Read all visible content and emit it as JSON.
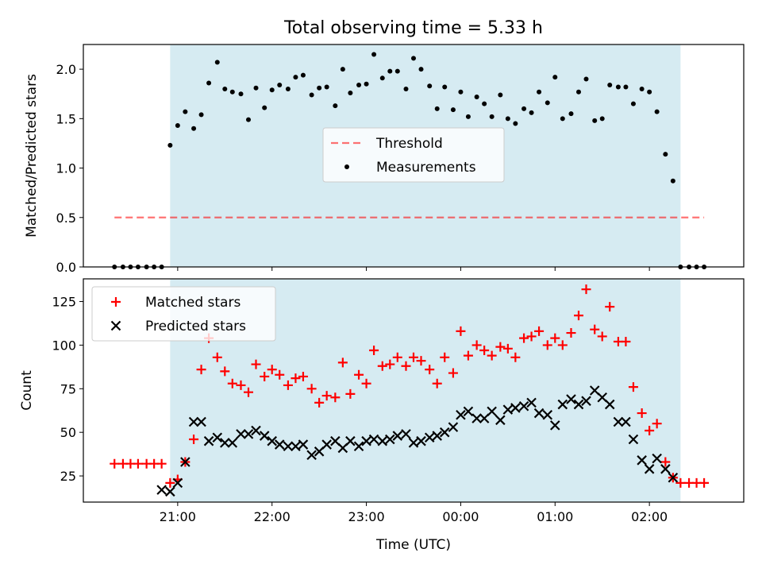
{
  "figure": {
    "title": "Total observing time = 5.33 h",
    "shaded_region": {
      "start_hour": 20.92,
      "end_hour": 26.33,
      "color": "#add8e6",
      "alpha": 0.5
    }
  },
  "chart_data": [
    {
      "type": "scatter",
      "title": "",
      "xlabel": "",
      "ylabel": "Matched/Predicted stars",
      "xlim": [
        20.0,
        27.0
      ],
      "ylim": [
        0.0,
        2.25
      ],
      "yticks": [
        0.0,
        0.5,
        1.0,
        1.5,
        2.0
      ],
      "ytick_labels": [
        "0.0",
        "0.5",
        "1.0",
        "1.5",
        "2.0"
      ],
      "grid": false,
      "legend": {
        "placement": "center",
        "entries": [
          "Threshold",
          "Measurements"
        ]
      },
      "threshold": {
        "name": "Threshold",
        "y": 0.5,
        "x_start": 20.33,
        "x_end": 26.58,
        "color": "#ff0000",
        "alpha": 0.55,
        "style": "dashed"
      },
      "series": [
        {
          "name": "Measurements",
          "color": "#000000",
          "marker": "dot",
          "x": [
            20.33,
            20.42,
            20.5,
            20.58,
            20.67,
            20.75,
            20.83,
            20.92,
            21.0,
            21.08,
            21.17,
            21.25,
            21.33,
            21.42,
            21.5,
            21.58,
            21.67,
            21.75,
            21.83,
            21.92,
            22.0,
            22.08,
            22.17,
            22.25,
            22.33,
            22.42,
            22.5,
            22.58,
            22.67,
            22.75,
            22.83,
            22.92,
            23.0,
            23.08,
            23.17,
            23.25,
            23.33,
            23.42,
            23.5,
            23.58,
            23.67,
            23.75,
            23.83,
            23.92,
            24.0,
            24.08,
            24.17,
            24.25,
            24.33,
            24.42,
            24.5,
            24.58,
            24.67,
            24.75,
            24.83,
            24.92,
            25.0,
            25.08,
            25.17,
            25.25,
            25.33,
            25.42,
            25.5,
            25.58,
            25.67,
            25.75,
            25.83,
            25.92,
            26.0,
            26.08,
            26.17,
            26.25,
            26.33,
            26.42,
            26.5,
            26.58
          ],
          "y": [
            0.0,
            0.0,
            0.0,
            0.0,
            0.0,
            0.0,
            0.0,
            1.23,
            1.43,
            1.57,
            1.4,
            1.54,
            1.86,
            2.07,
            1.8,
            1.77,
            1.75,
            1.49,
            1.81,
            1.61,
            1.79,
            1.84,
            1.8,
            1.92,
            1.94,
            1.74,
            1.81,
            1.82,
            1.63,
            2.0,
            1.76,
            1.84,
            1.85,
            2.15,
            1.91,
            1.98,
            1.98,
            1.8,
            2.11,
            2.0,
            1.83,
            1.6,
            1.82,
            1.59,
            1.77,
            1.52,
            1.72,
            1.65,
            1.52,
            1.74,
            1.5,
            1.45,
            1.6,
            1.56,
            1.77,
            1.66,
            1.92,
            1.5,
            1.55,
            1.77,
            1.9,
            1.48,
            1.5,
            1.84,
            1.82,
            1.82,
            1.65,
            1.8,
            1.77,
            1.57,
            1.14,
            0.87,
            0.0,
            0.0,
            0.0,
            0.0
          ]
        }
      ]
    },
    {
      "type": "scatter",
      "title": "",
      "xlabel": "Time (UTC)",
      "ylabel": "Count",
      "xlim": [
        20.0,
        27.0
      ],
      "ylim": [
        10,
        138
      ],
      "yticks": [
        25,
        50,
        75,
        100,
        125
      ],
      "ytick_labels": [
        "25",
        "50",
        "75",
        "100",
        "125"
      ],
      "xticks": [
        21,
        22,
        23,
        24,
        25,
        26
      ],
      "xtick_labels": [
        "21:00",
        "22:00",
        "23:00",
        "00:00",
        "01:00",
        "02:00"
      ],
      "grid": false,
      "legend": {
        "placement": "top-left",
        "entries": [
          "Matched stars",
          "Predicted stars"
        ]
      },
      "series": [
        {
          "name": "Matched stars",
          "color": "#ff0000",
          "marker": "plus",
          "x": [
            20.33,
            20.42,
            20.5,
            20.58,
            20.67,
            20.75,
            20.83,
            20.92,
            21.0,
            21.08,
            21.17,
            21.25,
            21.33,
            21.42,
            21.5,
            21.58,
            21.67,
            21.75,
            21.83,
            21.92,
            22.0,
            22.08,
            22.17,
            22.25,
            22.33,
            22.42,
            22.5,
            22.58,
            22.67,
            22.75,
            22.83,
            22.92,
            23.0,
            23.08,
            23.17,
            23.25,
            23.33,
            23.42,
            23.5,
            23.58,
            23.67,
            23.75,
            23.83,
            23.92,
            24.0,
            24.08,
            24.17,
            24.25,
            24.33,
            24.42,
            24.5,
            24.58,
            24.67,
            24.75,
            24.83,
            24.92,
            25.0,
            25.08,
            25.17,
            25.25,
            25.33,
            25.42,
            25.5,
            25.58,
            25.67,
            25.75,
            25.83,
            25.92,
            26.0,
            26.08,
            26.17,
            26.25,
            26.33,
            26.42,
            26.5,
            26.58
          ],
          "y": [
            32,
            32,
            32,
            32,
            32,
            32,
            32,
            21,
            23,
            33,
            46,
            86,
            104,
            93,
            85,
            78,
            77,
            73,
            89,
            82,
            86,
            83,
            77,
            81,
            82,
            75,
            67,
            71,
            70,
            90,
            72,
            83,
            78,
            97,
            88,
            89,
            93,
            88,
            93,
            91,
            86,
            78,
            93,
            84,
            108,
            94,
            100,
            97,
            94,
            99,
            98,
            93,
            104,
            105,
            108,
            100,
            104,
            100,
            107,
            117,
            132,
            109,
            105,
            122,
            102,
            102,
            76,
            61,
            51,
            55,
            33,
            24,
            21,
            21,
            21,
            21
          ]
        },
        {
          "name": "Predicted stars",
          "color": "#000000",
          "marker": "x",
          "x": [
            20.83,
            20.92,
            21.0,
            21.08,
            21.17,
            21.25,
            21.33,
            21.42,
            21.5,
            21.58,
            21.67,
            21.75,
            21.83,
            21.92,
            22.0,
            22.08,
            22.17,
            22.25,
            22.33,
            22.42,
            22.5,
            22.58,
            22.67,
            22.75,
            22.83,
            22.92,
            23.0,
            23.08,
            23.17,
            23.25,
            23.33,
            23.42,
            23.5,
            23.58,
            23.67,
            23.75,
            23.83,
            23.92,
            24.0,
            24.08,
            24.17,
            24.25,
            24.33,
            24.42,
            24.5,
            24.58,
            24.67,
            24.75,
            24.83,
            24.92,
            25.0,
            25.08,
            25.17,
            25.25,
            25.33,
            25.42,
            25.5,
            25.58,
            25.67,
            25.75,
            25.83,
            25.92,
            26.0,
            26.08,
            26.17,
            26.25
          ],
          "y": [
            17,
            16,
            21,
            33,
            56,
            56,
            45,
            47,
            44,
            44,
            49,
            49,
            51,
            48,
            45,
            43,
            42,
            42,
            43,
            37,
            39,
            43,
            45,
            41,
            45,
            42,
            45,
            46,
            45,
            46,
            48,
            49,
            44,
            45,
            47,
            48,
            50,
            53,
            60,
            62,
            58,
            58,
            62,
            57,
            63,
            64,
            65,
            67,
            61,
            60,
            54,
            66,
            69,
            66,
            68,
            74,
            70,
            66,
            56,
            56,
            46,
            34,
            29,
            35,
            29,
            24
          ]
        }
      ]
    }
  ]
}
